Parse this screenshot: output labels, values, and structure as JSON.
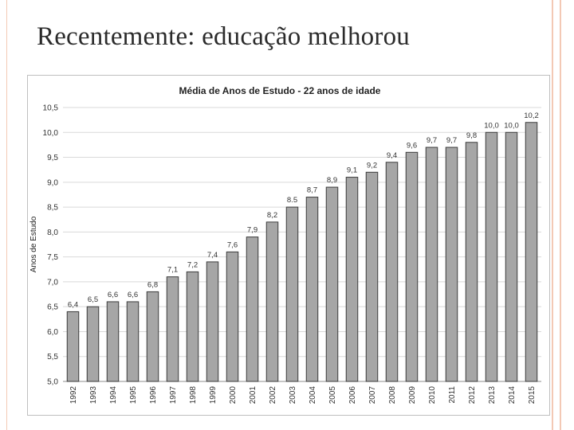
{
  "slide": {
    "title": "Recentemente: educação melhorou"
  },
  "chart_data": {
    "type": "bar",
    "title": "Média de Anos de Estudo - 22 anos de idade",
    "xlabel": "",
    "ylabel": "Anos de Estudo",
    "ylim": [
      5.0,
      10.5
    ],
    "yticks": [
      "5,0",
      "5,5",
      "6,0",
      "6,5",
      "7,0",
      "7,5",
      "8,0",
      "8,5",
      "9,0",
      "9,5",
      "10,0",
      "10,5"
    ],
    "grid": true,
    "bar_color": "#a6a6a6",
    "bar_edge_color": "#3a3a3a",
    "categories": [
      "1992",
      "1993",
      "1994",
      "1995",
      "1996",
      "1997",
      "1998",
      "1999",
      "2000",
      "2001",
      "2002",
      "2003",
      "2004",
      "2005",
      "2006",
      "2007",
      "2008",
      "2009",
      "2010",
      "2011",
      "2012",
      "2013",
      "2014",
      "2015"
    ],
    "values": [
      6.4,
      6.5,
      6.6,
      6.6,
      6.8,
      7.1,
      7.2,
      7.4,
      7.6,
      7.9,
      8.2,
      8.5,
      8.7,
      8.9,
      9.1,
      9.2,
      9.4,
      9.6,
      9.7,
      9.7,
      9.8,
      10.0,
      10.0,
      10.2
    ],
    "data_labels": [
      "6,4",
      "6,5",
      "6,6",
      "6,6",
      "6,8",
      "7,1",
      "7,2",
      "7,4",
      "7,6",
      "7,9",
      "8,2",
      "8.5",
      "8,7",
      "8,9",
      "9,1",
      "9,2",
      "9,4",
      "9,6",
      "9,7",
      "9,7",
      "9,8",
      "10,0",
      "10,0",
      "10,2"
    ]
  }
}
